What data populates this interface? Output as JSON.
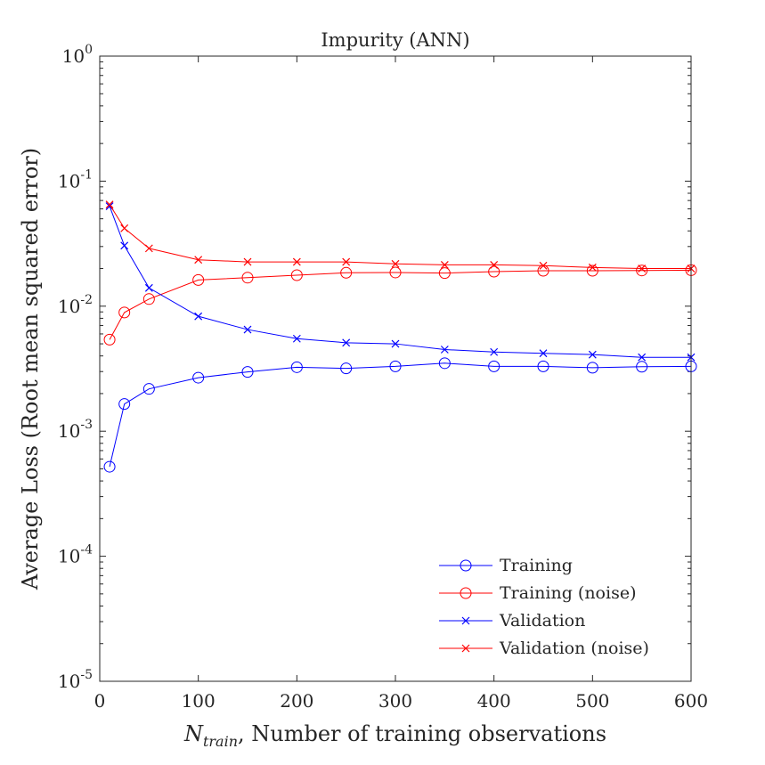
{
  "chart_data": {
    "type": "line",
    "title": "Impurity (ANN)",
    "xlabel_main": "N",
    "xlabel_sub": "train",
    "xlabel_rest": ", Number of training observations",
    "ylabel": "Average Loss (Root mean squared error)",
    "xlim": [
      0,
      600
    ],
    "ylim": [
      1e-05,
      1
    ],
    "yscale": "log",
    "x_ticks": [
      0,
      100,
      200,
      300,
      400,
      500,
      600
    ],
    "y_tick_exponents": [
      "0",
      "-1",
      "-2",
      "-3",
      "-4",
      "-5"
    ],
    "y_tick_base": "10",
    "legend_position": "bottom-right",
    "grid": false,
    "x": [
      10,
      25,
      50,
      100,
      150,
      200,
      250,
      300,
      350,
      400,
      450,
      500,
      550,
      600
    ],
    "series": [
      {
        "name": "Training",
        "color": "#0000ff",
        "marker": "circle",
        "values": [
          0.00052,
          0.00165,
          0.00218,
          0.00268,
          0.00298,
          0.00325,
          0.00318,
          0.0033,
          0.0035,
          0.0033,
          0.0033,
          0.00322,
          0.00328,
          0.0033
        ]
      },
      {
        "name": "Training (noise)",
        "color": "#ff0000",
        "marker": "circle",
        "values": [
          0.0054,
          0.0089,
          0.0114,
          0.0162,
          0.0169,
          0.0177,
          0.0185,
          0.0186,
          0.0184,
          0.0189,
          0.0192,
          0.0192,
          0.0193,
          0.0194
        ]
      },
      {
        "name": "Validation",
        "color": "#0000ff",
        "marker": "x",
        "values": [
          0.063,
          0.0305,
          0.014,
          0.0083,
          0.0065,
          0.0055,
          0.0051,
          0.005,
          0.0045,
          0.0043,
          0.0042,
          0.0041,
          0.0039,
          0.0039
        ]
      },
      {
        "name": "Validation (noise)",
        "color": "#ff0000",
        "marker": "x",
        "values": [
          0.065,
          0.042,
          0.029,
          0.0235,
          0.0226,
          0.0226,
          0.0226,
          0.0218,
          0.0214,
          0.0214,
          0.0211,
          0.0204,
          0.02,
          0.02
        ]
      }
    ]
  }
}
